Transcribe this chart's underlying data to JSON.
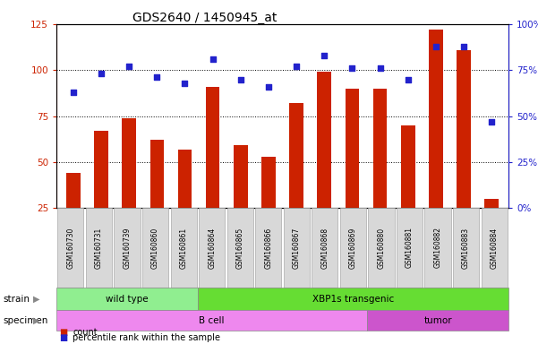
{
  "title": "GDS2640 / 1450945_at",
  "samples": [
    "GSM160730",
    "GSM160731",
    "GSM160739",
    "GSM160860",
    "GSM160861",
    "GSM160864",
    "GSM160865",
    "GSM160866",
    "GSM160867",
    "GSM160868",
    "GSM160869",
    "GSM160880",
    "GSM160881",
    "GSM160882",
    "GSM160883",
    "GSM160884"
  ],
  "counts": [
    44,
    67,
    74,
    62,
    57,
    91,
    59,
    53,
    82,
    99,
    90,
    90,
    70,
    122,
    111,
    30
  ],
  "percentiles": [
    63,
    73,
    77,
    71,
    68,
    81,
    70,
    66,
    77,
    83,
    76,
    76,
    70,
    88,
    88,
    47
  ],
  "strain_groups": [
    {
      "label": "wild type",
      "start": 0,
      "end": 4,
      "color": "#90ee90"
    },
    {
      "label": "XBP1s transgenic",
      "start": 5,
      "end": 15,
      "color": "#66dd33"
    }
  ],
  "specimen_groups": [
    {
      "label": "B cell",
      "start": 0,
      "end": 10,
      "color": "#ee88ee"
    },
    {
      "label": "tumor",
      "start": 11,
      "end": 15,
      "color": "#cc55cc"
    }
  ],
  "ylim_left": [
    25,
    125
  ],
  "ylim_right": [
    0,
    100
  ],
  "yticks_left": [
    25,
    50,
    75,
    100,
    125
  ],
  "yticks_right": [
    0,
    25,
    50,
    75,
    100
  ],
  "yticklabels_right": [
    "0%",
    "25%",
    "50%",
    "75%",
    "100%"
  ],
  "bar_color": "#cc2200",
  "dot_color": "#2222cc",
  "bar_width": 0.5,
  "bg_color": "#ffffff",
  "tick_bg_color": "#d8d8d8",
  "legend_items": [
    {
      "label": "count",
      "color": "#cc2200"
    },
    {
      "label": "percentile rank within the sample",
      "color": "#2222cc"
    }
  ]
}
